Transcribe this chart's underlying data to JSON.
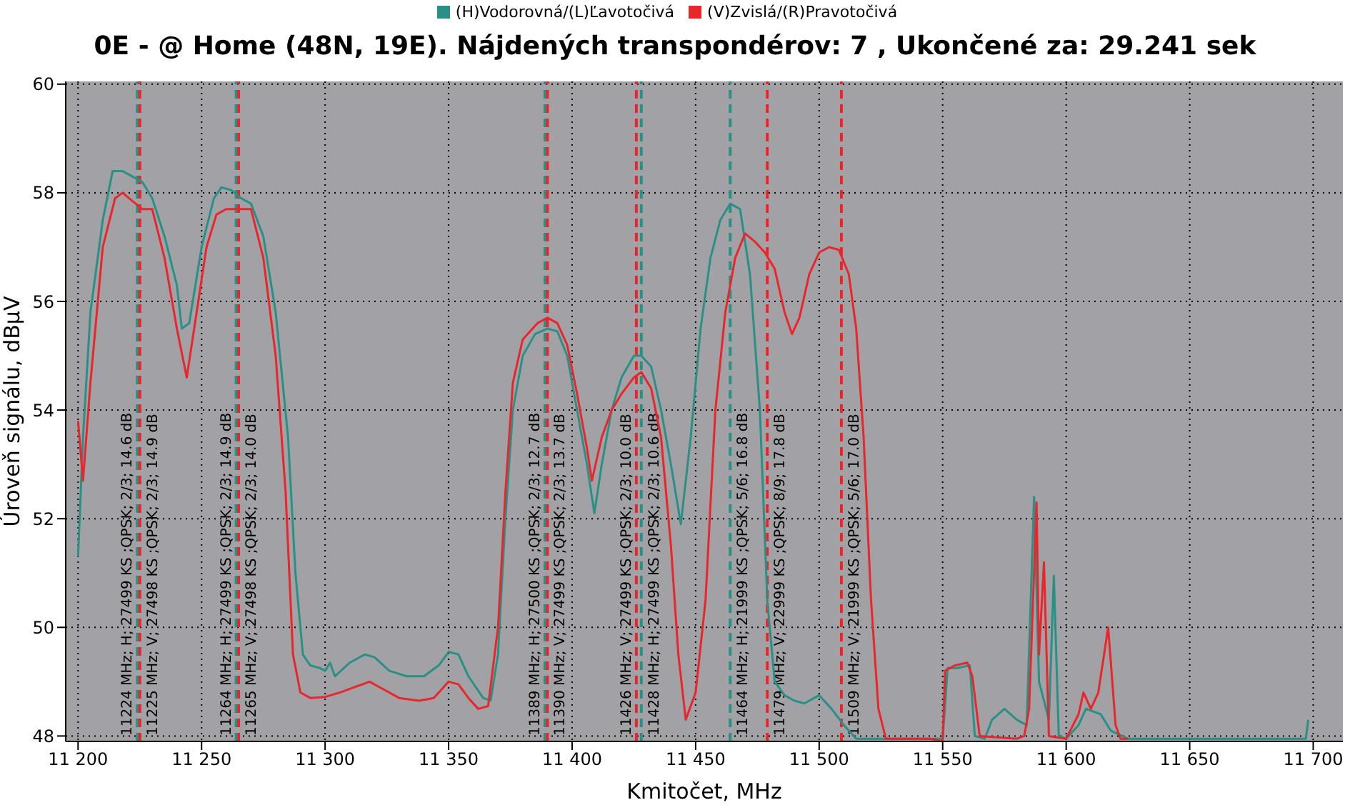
{
  "chart_data": {
    "type": "line",
    "title": "0E -  @ Home (48N, 19E). Nájdených transpondérov: 7 , Ukončené za: 29.241 sek",
    "xlabel": "Kmitočet, MHz",
    "ylabel": "Úroveň signálu, dBμV",
    "xlim": [
      11195,
      11712
    ],
    "xticks": [
      {
        "value": 11200,
        "label": "11 200"
      },
      {
        "value": 11250,
        "label": "11 250"
      },
      {
        "value": 11300,
        "label": "11 300"
      },
      {
        "value": 11350,
        "label": "11 350"
      },
      {
        "value": 11400,
        "label": "11 400"
      },
      {
        "value": 11450,
        "label": "11 450"
      },
      {
        "value": 11500,
        "label": "11 500"
      },
      {
        "value": 11550,
        "label": "11 550"
      },
      {
        "value": 11600,
        "label": "11 600"
      },
      {
        "value": 11650,
        "label": "11 650"
      },
      {
        "value": 11700,
        "label": "11 700"
      }
    ],
    "ylim": [
      47.9,
      60.05
    ],
    "yticks": [
      48,
      50,
      52,
      54,
      56,
      58,
      60
    ],
    "grid": true,
    "legend": "top",
    "marker": "none",
    "line_style": "solid",
    "series": [
      {
        "name": "(H)Vodorovná/(L)Ľavotočivá",
        "color": "#2a9086",
        "x": [
          11200,
          11202,
          11205,
          11210,
          11214,
          11218,
          11222,
          11226,
          11230,
          11235,
          11240,
          11242,
          11245,
          11250,
          11255,
          11258,
          11262,
          11266,
          11270,
          11275,
          11280,
          11285,
          11288,
          11291,
          11294,
          11298,
          11300,
          11302,
          11304,
          11310,
          11316,
          11320,
          11326,
          11333,
          11340,
          11346,
          11350,
          11354,
          11358,
          11364,
          11367,
          11370,
          11373,
          11376,
          11380,
          11385,
          11390,
          11394,
          11398,
          11402,
          11406,
          11409,
          11412,
          11416,
          11420,
          11425,
          11428,
          11432,
          11436,
          11440,
          11444,
          11448,
          11452,
          11456,
          11460,
          11464,
          11468,
          11472,
          11476,
          11479,
          11482,
          11486,
          11490,
          11494,
          11500,
          11505,
          11510,
          11515,
          11520,
          11545,
          11550,
          11552,
          11556,
          11561,
          11563,
          11567,
          11570,
          11575,
          11580,
          11584,
          11587,
          11589,
          11593,
          11595,
          11597,
          11600,
          11605,
          11608,
          11614,
          11618,
          11625,
          11660,
          11697,
          11698
        ],
        "values": [
          51.3,
          53.5,
          55.8,
          57.5,
          58.4,
          58.4,
          58.3,
          58.2,
          57.9,
          57.2,
          56.3,
          55.5,
          55.6,
          57.0,
          57.9,
          58.1,
          58.05,
          57.9,
          57.8,
          57.2,
          55.8,
          53.5,
          51.0,
          49.5,
          49.3,
          49.25,
          49.2,
          49.35,
          49.1,
          49.35,
          49.5,
          49.45,
          49.2,
          49.1,
          49.1,
          49.3,
          49.55,
          49.5,
          49.1,
          48.7,
          48.65,
          49.5,
          52.0,
          54.0,
          55.0,
          55.4,
          55.5,
          55.45,
          55.0,
          54.0,
          53.0,
          52.1,
          53.0,
          54.0,
          54.6,
          55.0,
          55.0,
          54.8,
          54.0,
          53.0,
          51.9,
          53.5,
          55.5,
          56.8,
          57.5,
          57.8,
          57.7,
          56.5,
          54.0,
          50.5,
          49.0,
          48.75,
          48.65,
          48.6,
          48.75,
          48.5,
          48.2,
          47.95,
          47.95,
          47.95,
          47.95,
          49.25,
          49.25,
          49.3,
          48.0,
          47.95,
          48.3,
          48.5,
          48.3,
          48.2,
          52.4,
          49.0,
          48.3,
          50.95,
          48.0,
          47.95,
          48.2,
          48.5,
          48.4,
          48.1,
          47.95,
          47.95,
          47.95,
          48.3
        ]
      },
      {
        "name": "(V)Zvislá/(R)Pravotočivá",
        "color": "#e8262c",
        "x": [
          11200,
          11202,
          11205,
          11210,
          11215,
          11218,
          11222,
          11226,
          11230,
          11235,
          11240,
          11244,
          11248,
          11252,
          11256,
          11260,
          11265,
          11270,
          11275,
          11280,
          11284,
          11287,
          11290,
          11294,
          11300,
          11306,
          11312,
          11318,
          11322,
          11330,
          11338,
          11344,
          11350,
          11354,
          11358,
          11362,
          11366,
          11370,
          11373,
          11376,
          11380,
          11386,
          11390,
          11394,
          11398,
          11402,
          11406,
          11408,
          11412,
          11416,
          11420,
          11425,
          11428,
          11432,
          11436,
          11440,
          11443,
          11446,
          11450,
          11454,
          11458,
          11462,
          11466,
          11470,
          11474,
          11478,
          11482,
          11486,
          11489,
          11492,
          11496,
          11500,
          11504,
          11508,
          11512,
          11515,
          11518,
          11521,
          11524,
          11527,
          11545,
          11550,
          11551,
          11555,
          11560,
          11562,
          11565,
          11580,
          11583,
          11585,
          11588,
          11589,
          11591,
          11593,
          11600,
          11605,
          11607,
          11610,
          11613,
          11617,
          11620,
          11622,
          11625
        ],
        "values": [
          53.8,
          52.7,
          54.5,
          57.0,
          57.9,
          58.0,
          57.85,
          57.7,
          57.7,
          56.8,
          55.5,
          54.6,
          55.8,
          57.0,
          57.6,
          57.7,
          57.7,
          57.7,
          56.8,
          55.0,
          52.5,
          49.5,
          48.8,
          48.7,
          48.72,
          48.8,
          48.9,
          49.0,
          48.9,
          48.7,
          48.65,
          48.7,
          49.0,
          48.95,
          48.7,
          48.5,
          48.55,
          50.0,
          52.5,
          54.5,
          55.3,
          55.6,
          55.7,
          55.6,
          55.2,
          54.3,
          53.3,
          52.7,
          53.5,
          54.0,
          54.3,
          54.6,
          54.7,
          54.4,
          53.5,
          51.5,
          49.5,
          48.3,
          48.8,
          50.5,
          54.0,
          55.8,
          56.8,
          57.25,
          57.1,
          56.9,
          56.6,
          55.8,
          55.4,
          55.7,
          56.5,
          56.9,
          57.0,
          56.95,
          56.5,
          55.5,
          53.5,
          50.5,
          48.5,
          47.95,
          47.95,
          47.9,
          49.2,
          49.3,
          49.35,
          49.1,
          48.0,
          47.95,
          48.0,
          48.5,
          52.3,
          49.5,
          51.2,
          48.0,
          47.95,
          48.4,
          48.8,
          48.5,
          48.8,
          50.0,
          48.2,
          47.95,
          47.95
        ]
      }
    ],
    "ref_lines": [
      {
        "axis": "x",
        "value": 11224,
        "label": "11224 MHz; H; 27499 KS ;QPSK; 2/3; 14.6 dB",
        "color": "#2a9086",
        "line_style": "dashed"
      },
      {
        "axis": "x",
        "value": 11225,
        "label": "11225 MHz; V; 27498 KS ;QPSK; 2/3; 14.9 dB",
        "color": "#e8262c",
        "line_style": "dashed"
      },
      {
        "axis": "x",
        "value": 11264,
        "label": "11264 MHz; H; 27499 KS ;QPSK; 2/3; 14.9 dB",
        "color": "#2a9086",
        "line_style": "dashed"
      },
      {
        "axis": "x",
        "value": 11265,
        "label": "11265 MHz; V; 27498 KS ;QPSK; 2/3; 14.0 dB",
        "color": "#e8262c",
        "line_style": "dashed"
      },
      {
        "axis": "x",
        "value": 11389,
        "label": "11389 MHz; H; 27500 KS ;QPSK; 2/3; 12.7 dB",
        "color": "#2a9086",
        "line_style": "dashed"
      },
      {
        "axis": "x",
        "value": 11390,
        "label": "11390 MHz; V; 27499 KS ;QPSK; 2/3; 13.7 dB",
        "color": "#e8262c",
        "line_style": "dashed"
      },
      {
        "axis": "x",
        "value": 11426,
        "label": "11426 MHz; V; 27499 KS ;QPSK; 2/3; 10.0 dB",
        "color": "#e8262c",
        "line_style": "dashed"
      },
      {
        "axis": "x",
        "value": 11428,
        "label": "11428 MHz; H; 27499 KS ;QPSK; 2/3; 10.6 dB",
        "color": "#2a9086",
        "line_style": "dashed"
      },
      {
        "axis": "x",
        "value": 11464,
        "label": "11464 MHz; H; 21999 KS ;QPSK; 5/6; 16.8 dB",
        "color": "#2a9086",
        "line_style": "dashed"
      },
      {
        "axis": "x",
        "value": 11479,
        "label": "11479 MHz; V; 22999 KS ;QPSK; 8/9; 17.8 dB",
        "color": "#e8262c",
        "line_style": "dashed"
      },
      {
        "axis": "x",
        "value": 11509,
        "label": "11509 MHz; V; 21999 KS ;QPSK; 5/6; 17.0 dB",
        "color": "#e8262c",
        "line_style": "dashed"
      }
    ]
  }
}
